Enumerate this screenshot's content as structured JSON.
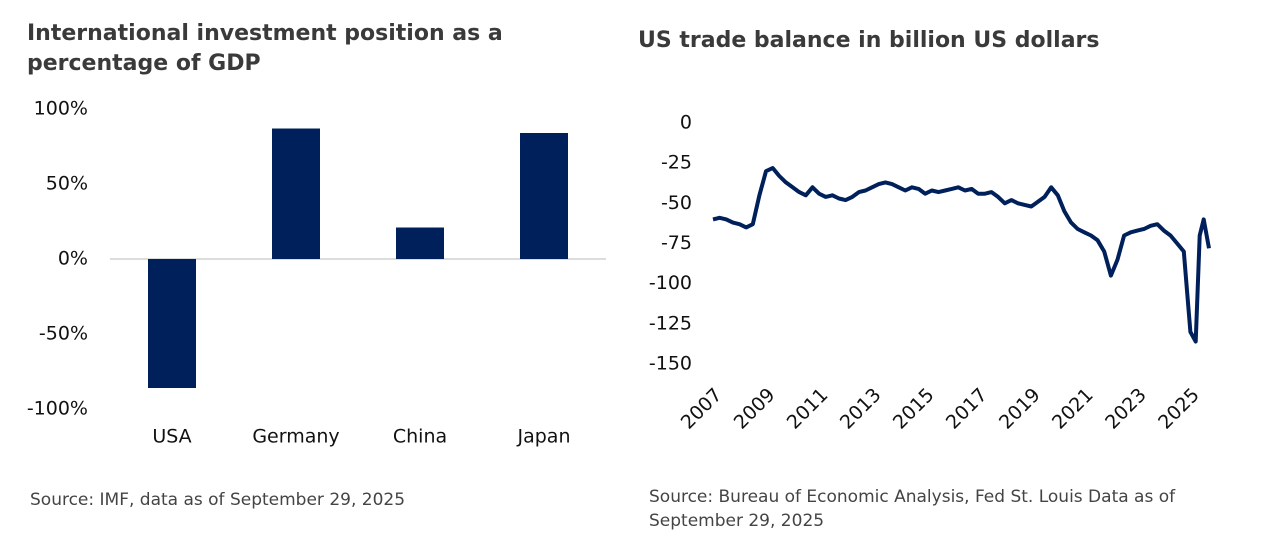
{
  "chart_data": [
    {
      "type": "bar",
      "title": "International investment position as a percentage of GDP",
      "source": "Source: IMF, data as of September 29, 2025",
      "categories": [
        "USA",
        "Germany",
        "China",
        "Japan"
      ],
      "values": [
        -86,
        87,
        21,
        84
      ],
      "color": "#00205b",
      "ylim": [
        -100,
        100
      ],
      "yticks": [
        {
          "value": -100,
          "label": "-100%"
        },
        {
          "value": -50,
          "label": "-50%"
        },
        {
          "value": 0,
          "label": "0%"
        },
        {
          "value": 50,
          "label": "50%"
        },
        {
          "value": 100,
          "label": "100%"
        }
      ]
    },
    {
      "type": "line",
      "title": "US trade balance in billion US dollars",
      "source": "Source: Bureau of Economic Analysis, Fed St. Louis Data as of September 29, 2025",
      "x": [
        2007.0,
        2007.25,
        2007.5,
        2007.75,
        2008.0,
        2008.25,
        2008.5,
        2008.75,
        2009.0,
        2009.25,
        2009.5,
        2009.75,
        2010.0,
        2010.25,
        2010.5,
        2010.75,
        2011.0,
        2011.25,
        2011.5,
        2011.75,
        2012.0,
        2012.25,
        2012.5,
        2012.75,
        2013.0,
        2013.25,
        2013.5,
        2013.75,
        2014.0,
        2014.25,
        2014.5,
        2014.75,
        2015.0,
        2015.25,
        2015.5,
        2015.75,
        2016.0,
        2016.25,
        2016.5,
        2016.75,
        2017.0,
        2017.25,
        2017.5,
        2017.75,
        2018.0,
        2018.25,
        2018.5,
        2018.75,
        2019.0,
        2019.25,
        2019.5,
        2019.75,
        2020.0,
        2020.25,
        2020.5,
        2020.75,
        2021.0,
        2021.25,
        2021.5,
        2021.75,
        2022.0,
        2022.25,
        2022.5,
        2022.75,
        2023.0,
        2023.25,
        2023.5,
        2023.75,
        2024.0,
        2024.25,
        2024.5,
        2024.75,
        2025.0,
        2025.2,
        2025.35,
        2025.5,
        2025.7
      ],
      "series": [
        {
          "name": "US trade balance",
          "color": "#00205b",
          "values": [
            -60,
            -59,
            -60,
            -62,
            -63,
            -65,
            -63,
            -45,
            -30,
            -28,
            -33,
            -37,
            -40,
            -43,
            -45,
            -40,
            -44,
            -46,
            -45,
            -47,
            -48,
            -46,
            -43,
            -42,
            -40,
            -38,
            -37,
            -38,
            -40,
            -42,
            -40,
            -41,
            -44,
            -42,
            -43,
            -42,
            -41,
            -40,
            -42,
            -41,
            -44,
            -44,
            -43,
            -46,
            -50,
            -48,
            -50,
            -51,
            -52,
            -49,
            -46,
            -40,
            -45,
            -55,
            -62,
            -66,
            -68,
            -70,
            -73,
            -80,
            -95,
            -85,
            -70,
            -68,
            -67,
            -66,
            -64,
            -63,
            -67,
            -70,
            -75,
            -80,
            -130,
            -136,
            -70,
            -60,
            -78
          ]
        }
      ],
      "xlim": [
        2007,
        2025.7
      ],
      "xticks": [
        2007,
        2009,
        2011,
        2013,
        2015,
        2017,
        2019,
        2021,
        2023,
        2025
      ],
      "ylim": [
        -150,
        0
      ],
      "yticks": [
        -150,
        -125,
        -100,
        -75,
        -50,
        -25,
        0
      ]
    }
  ]
}
